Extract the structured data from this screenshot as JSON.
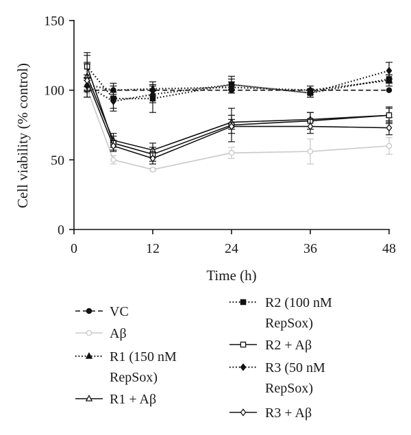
{
  "chart_data": {
    "type": "line",
    "xlabel": "Time (h)",
    "ylabel": "Cell viability (% control)",
    "xlim": [
      0,
      48
    ],
    "ylim": [
      0,
      150
    ],
    "xticks": [
      0,
      12,
      24,
      36,
      48
    ],
    "yticks": [
      0,
      50,
      100,
      150
    ],
    "x": [
      2,
      6,
      12,
      24,
      36,
      48
    ],
    "grid": false,
    "legend_position": "bottom",
    "series": [
      {
        "key": "vc",
        "name": "VC",
        "line": "dashed",
        "marker": "filled-circle",
        "color": "#111111",
        "values": [
          100,
          100,
          100,
          100,
          100,
          100
        ],
        "err": [
          0,
          0,
          0,
          0,
          0,
          0
        ]
      },
      {
        "key": "abeta",
        "name": "Aβ",
        "line": "solid",
        "marker": "open-circle",
        "color": "#c8c8c8",
        "values": [
          101,
          50,
          43,
          55,
          56,
          60
        ],
        "err": [
          3,
          3,
          1,
          4,
          9,
          6
        ]
      },
      {
        "key": "r1",
        "name": "R1 (150 nM RepSox)",
        "line": "dotted",
        "marker": "filled-triangle",
        "color": "#111111",
        "values": [
          104,
          100,
          101,
          102,
          100,
          107
        ],
        "err": [
          5,
          5,
          5,
          4,
          3,
          4
        ]
      },
      {
        "key": "r1ab",
        "name": "R1 + Aβ",
        "line": "solid",
        "marker": "open-triangle",
        "color": "#111111",
        "values": [
          110,
          64,
          57,
          77,
          79,
          82
        ],
        "err": [
          10,
          5,
          5,
          5,
          5,
          5
        ]
      },
      {
        "key": "r2",
        "name": "R2 (100 nM RepSox)",
        "line": "dotted",
        "marker": "filled-square",
        "color": "#111111",
        "values": [
          117,
          94,
          94,
          104,
          98,
          108
        ],
        "err": [
          8,
          9,
          10,
          4,
          3,
          3
        ]
      },
      {
        "key": "r2ab",
        "name": "R2 + Aβ",
        "line": "solid",
        "marker": "open-square",
        "color": "#111111",
        "values": [
          117,
          62,
          54,
          75,
          78,
          82
        ],
        "err": [
          10,
          5,
          5,
          12,
          6,
          6
        ]
      },
      {
        "key": "r3",
        "name": "R3 (50 nM RepSox)",
        "line": "dotted",
        "marker": "filled-diamond",
        "color": "#111111",
        "values": [
          103,
          92,
          97,
          104,
          98,
          114
        ],
        "err": [
          8,
          5,
          6,
          6,
          3,
          6
        ]
      },
      {
        "key": "r3ab",
        "name": "R3 + Aβ",
        "line": "solid",
        "marker": "open-diamond",
        "color": "#111111",
        "values": [
          107,
          60,
          51,
          74,
          74,
          73
        ],
        "err": [
          12,
          4,
          4,
          5,
          5,
          5
        ]
      }
    ]
  }
}
